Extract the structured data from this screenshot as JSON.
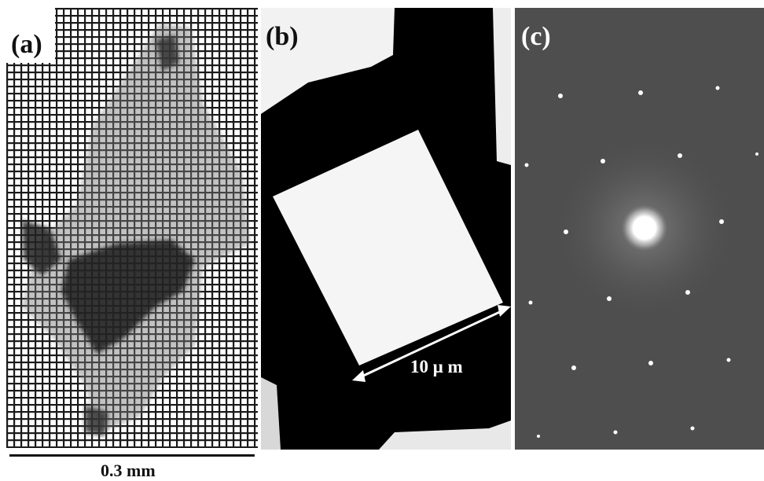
{
  "panels": [
    {
      "label": "(a)"
    },
    {
      "label": "(b)",
      "scale_label": "10 μ m"
    },
    {
      "label": "(c)"
    }
  ],
  "scale_bar_a": {
    "label": "0.3 mm"
  },
  "colors": {
    "grid": "#1a1a1a",
    "flake": "#6a6a6a",
    "dark_flake": "#1c1c1c",
    "background_b": "#000000",
    "square_b": "#f5f5f5",
    "diffraction_bg": "#4e4e4e",
    "spot": "#ffffff"
  }
}
